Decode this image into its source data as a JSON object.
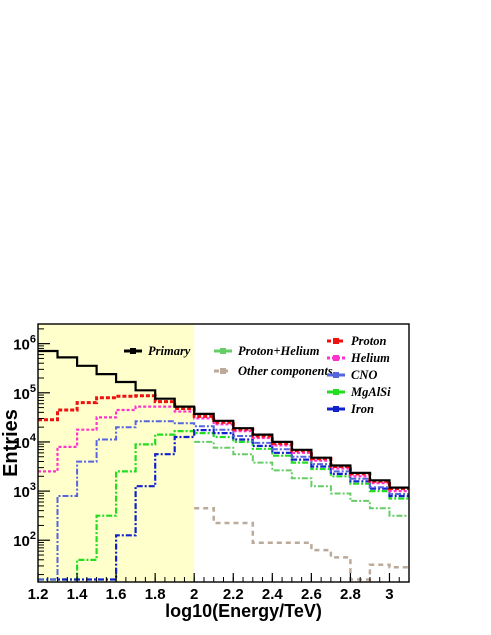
{
  "chart_data": {
    "type": "line",
    "step": true,
    "xlabel": "log10(Energy/TeV)",
    "ylabel": "Entries",
    "xlim": [
      1.2,
      3.1
    ],
    "ylim_log10": [
      1.15,
      6.4
    ],
    "log_y": true,
    "shaded_range": [
      1.2,
      2.0
    ],
    "shade_color": "#ffffcc",
    "x_ticks": [
      "1.2",
      "1.4",
      "1.6",
      "1.8",
      "2",
      "2.2",
      "2.4",
      "2.6",
      "2.8",
      "3"
    ],
    "y_ticks": [
      {
        "base": "10",
        "exp": "2",
        "log10": 2
      },
      {
        "base": "10",
        "exp": "3",
        "log10": 3
      },
      {
        "base": "10",
        "exp": "4",
        "log10": 4
      },
      {
        "base": "10",
        "exp": "5",
        "log10": 5
      },
      {
        "base": "10",
        "exp": "6",
        "log10": 6
      }
    ],
    "bin_edges": [
      1.2,
      1.3,
      1.4,
      1.5,
      1.6,
      1.7,
      1.8,
      1.9,
      2.0,
      2.1,
      2.2,
      2.3,
      2.4,
      2.5,
      2.6,
      2.7,
      2.8,
      2.9,
      3.0,
      3.1
    ],
    "series": [
      {
        "name": "Primary",
        "color": "#000000",
        "dash": "",
        "width": 2.2,
        "values_log10": [
          5.85,
          5.72,
          5.55,
          5.38,
          5.22,
          5.05,
          4.88,
          4.72,
          4.57,
          4.43,
          4.28,
          4.15,
          4.0,
          3.84,
          3.68,
          3.52,
          3.37,
          3.22,
          3.07
        ]
      },
      {
        "name": "Proton",
        "color": "#ee1111",
        "dash": "4,2",
        "width": 3,
        "values_log10": [
          4.45,
          4.65,
          4.8,
          4.9,
          4.93,
          4.94,
          4.82,
          4.68,
          4.52,
          4.4,
          4.26,
          4.12,
          3.97,
          3.82,
          3.66,
          3.5,
          3.35,
          3.2,
          3.05
        ]
      },
      {
        "name": "Helium",
        "color": "#ff33cc",
        "dash": "3,2",
        "width": 2.2,
        "values_log10": [
          3.4,
          3.9,
          4.25,
          4.5,
          4.65,
          4.72,
          4.72,
          4.62,
          4.48,
          4.36,
          4.22,
          4.08,
          3.93,
          3.78,
          3.62,
          3.46,
          3.3,
          3.16,
          3.0
        ]
      },
      {
        "name": "CNO",
        "color": "#5566dd",
        "dash": "6,2,2,2",
        "width": 2,
        "values_log10": [
          1.2,
          2.9,
          3.6,
          4.05,
          4.3,
          4.42,
          4.42,
          4.38,
          4.32,
          4.25,
          4.12,
          3.98,
          3.85,
          3.7,
          3.55,
          3.4,
          3.25,
          3.08,
          2.94
        ]
      },
      {
        "name": "MgAlSi",
        "color": "#22dd22",
        "dash": "6,2,2,2",
        "width": 2.2,
        "values_log10": [
          1.2,
          1.2,
          1.6,
          2.5,
          3.4,
          3.95,
          4.15,
          4.22,
          4.18,
          4.1,
          4.0,
          3.86,
          3.72,
          3.58,
          3.45,
          3.3,
          3.15,
          3.0,
          2.85
        ]
      },
      {
        "name": "Iron",
        "color": "#1122cc",
        "dash": "6,2,2,2",
        "width": 2.2,
        "values_log10": [
          1.2,
          1.2,
          1.2,
          1.2,
          2.1,
          3.1,
          3.75,
          4.1,
          4.24,
          4.18,
          4.05,
          3.92,
          3.78,
          3.64,
          3.5,
          3.35,
          3.2,
          3.05,
          2.9
        ]
      },
      {
        "name": "Proton+Helium",
        "color": "#66cc66",
        "dash": "6,2,2,2",
        "width": 2,
        "values_log10": [
          null,
          null,
          null,
          null,
          null,
          null,
          null,
          null,
          4.0,
          3.88,
          3.75,
          3.58,
          3.42,
          3.26,
          3.1,
          2.95,
          2.8,
          2.65,
          2.5
        ]
      },
      {
        "name": "Other components",
        "color": "#bbaa99",
        "dash": "5,4",
        "width": 2.5,
        "values_log10": [
          null,
          null,
          null,
          null,
          null,
          null,
          null,
          null,
          2.65,
          2.35,
          2.35,
          1.95,
          1.95,
          1.95,
          1.8,
          1.65,
          1.2,
          1.5,
          1.45
        ]
      }
    ],
    "legend": {
      "primary": "Primary",
      "groups": [
        "Proton+Helium",
        "Other components"
      ],
      "species": [
        "Proton",
        "Helium",
        "CNO",
        "MgAlSi",
        "Iron"
      ]
    }
  }
}
